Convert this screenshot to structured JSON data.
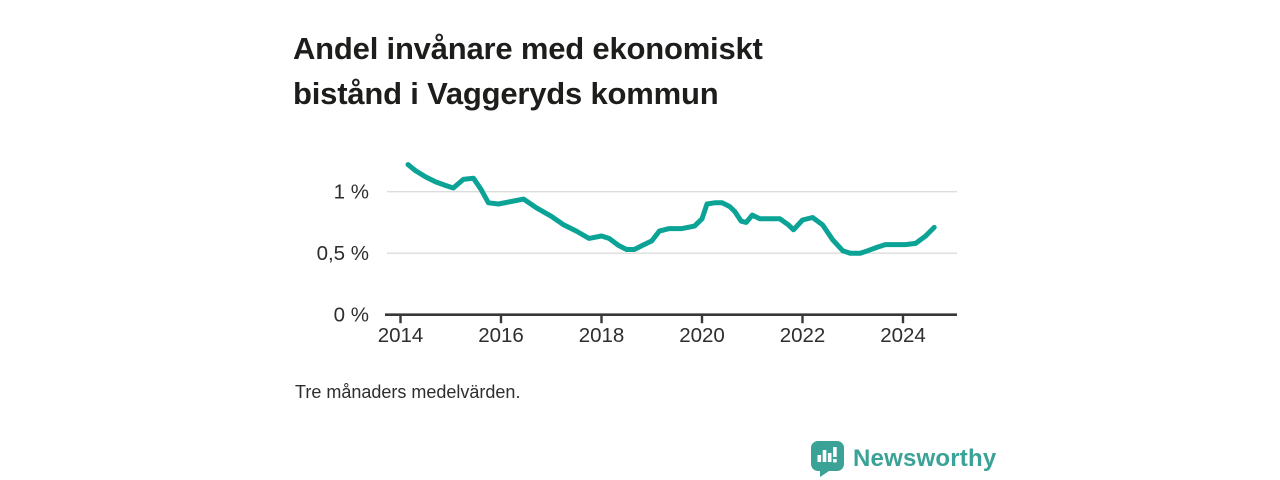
{
  "title": {
    "line1": "Andel invånare med ekonomiskt",
    "line2": "bistånd i Vaggeryds kommun"
  },
  "footnote": "Tre månaders medelvärden.",
  "branding": {
    "name": "Newsworthy",
    "color": "#3aa296",
    "icon": "bar-chart-speech-bubble-icon"
  },
  "chart_data": {
    "type": "line",
    "title": "Andel invånare med ekonomiskt bistånd i Vaggeryds kommun",
    "subtitle": "Tre månaders medelvärden.",
    "xlabel": "",
    "ylabel": "",
    "unit": "%",
    "grid": "horizontal",
    "legend_position": "none",
    "line_color": "#0aa396",
    "grid_color": "#dcdcdc",
    "axis_color": "#383838",
    "tick_text_color": "#2e2e2e",
    "x_ticks": [
      2014,
      2016,
      2018,
      2020,
      2022,
      2024
    ],
    "y_ticks": [
      {
        "value": 0,
        "label": "0 %"
      },
      {
        "value": 0.5,
        "label": "0,5 %"
      },
      {
        "value": 1,
        "label": "1 %"
      }
    ],
    "x_range": [
      2013.7,
      2025.1
    ],
    "y_range": [
      0,
      1.3
    ],
    "series": [
      {
        "name": "Andel invånare med ekonomiskt bistånd",
        "points": [
          [
            2014.15,
            1.22
          ],
          [
            2014.3,
            1.17
          ],
          [
            2014.5,
            1.12
          ],
          [
            2014.7,
            1.08
          ],
          [
            2014.9,
            1.05
          ],
          [
            2015.05,
            1.03
          ],
          [
            2015.25,
            1.1
          ],
          [
            2015.45,
            1.11
          ],
          [
            2015.6,
            1.02
          ],
          [
            2015.75,
            0.91
          ],
          [
            2015.95,
            0.9
          ],
          [
            2016.2,
            0.92
          ],
          [
            2016.45,
            0.94
          ],
          [
            2016.7,
            0.87
          ],
          [
            2017.0,
            0.8
          ],
          [
            2017.25,
            0.73
          ],
          [
            2017.5,
            0.68
          ],
          [
            2017.75,
            0.62
          ],
          [
            2018.0,
            0.64
          ],
          [
            2018.15,
            0.62
          ],
          [
            2018.35,
            0.56
          ],
          [
            2018.5,
            0.53
          ],
          [
            2018.65,
            0.53
          ],
          [
            2018.8,
            0.56
          ],
          [
            2019.0,
            0.6
          ],
          [
            2019.15,
            0.68
          ],
          [
            2019.35,
            0.7
          ],
          [
            2019.6,
            0.7
          ],
          [
            2019.85,
            0.72
          ],
          [
            2020.0,
            0.78
          ],
          [
            2020.1,
            0.9
          ],
          [
            2020.25,
            0.91
          ],
          [
            2020.4,
            0.91
          ],
          [
            2020.55,
            0.88
          ],
          [
            2020.65,
            0.84
          ],
          [
            2020.78,
            0.76
          ],
          [
            2020.88,
            0.75
          ],
          [
            2021.0,
            0.81
          ],
          [
            2021.15,
            0.78
          ],
          [
            2021.35,
            0.78
          ],
          [
            2021.55,
            0.78
          ],
          [
            2021.72,
            0.73
          ],
          [
            2021.82,
            0.69
          ],
          [
            2022.0,
            0.77
          ],
          [
            2022.2,
            0.79
          ],
          [
            2022.4,
            0.73
          ],
          [
            2022.6,
            0.61
          ],
          [
            2022.8,
            0.52
          ],
          [
            2022.95,
            0.5
          ],
          [
            2023.15,
            0.5
          ],
          [
            2023.3,
            0.52
          ],
          [
            2023.5,
            0.55
          ],
          [
            2023.65,
            0.57
          ],
          [
            2023.85,
            0.57
          ],
          [
            2024.05,
            0.57
          ],
          [
            2024.25,
            0.58
          ],
          [
            2024.45,
            0.64
          ],
          [
            2024.62,
            0.71
          ]
        ]
      }
    ]
  }
}
